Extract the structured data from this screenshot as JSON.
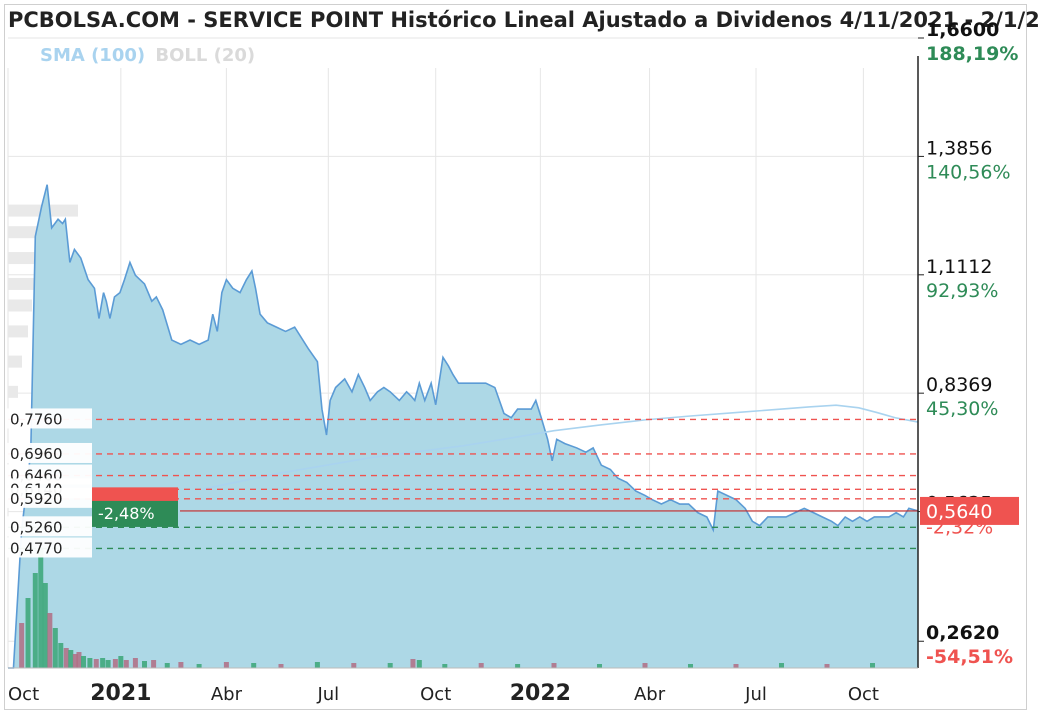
{
  "title": "PCBOLSA.COM - SERVICE POINT Histórico Lineal Ajustado a Dividenos 4/11/2021 - 2/1/2",
  "legend": {
    "sma_label": "SMA (100)",
    "boll_label": "BOLL (20)"
  },
  "colors": {
    "area_fill": "#add8e6",
    "line": "#5b9bd5",
    "sma": "#a9d3ef",
    "red": "#ef5350",
    "green": "#2e8b57",
    "grid": "#e6e6e6"
  },
  "chart_data": {
    "type": "area",
    "x_tick_labels": [
      "Oct",
      "2021",
      "Abr",
      "Jul",
      "Oct",
      "2022",
      "Abr",
      "Jul",
      "Oct"
    ],
    "y_ticks": [
      {
        "price": "1,6600",
        "pct": "188,19%",
        "bold": true
      },
      {
        "price": "1,3856",
        "pct": "140,56%",
        "bold": false
      },
      {
        "price": "1,1112",
        "pct": "92,93%",
        "bold": false
      },
      {
        "price": "0,8369",
        "pct": "45,30%",
        "bold": false
      },
      {
        "price": "0,5625",
        "pct": "-2,32%",
        "bold": false
      },
      {
        "price": "0,2620",
        "pct": "-54,51%",
        "bold": true
      }
    ],
    "ylim": [
      0.2,
      1.66
    ],
    "current_price": {
      "label": "0,5640",
      "value": 0.564
    },
    "pct_badge": {
      "label": "-2,48%"
    },
    "red_levels": [
      {
        "label": "0,7760",
        "value": 0.776
      },
      {
        "label": "0,6960",
        "value": 0.696
      },
      {
        "label": "0,6460",
        "value": 0.646
      },
      {
        "label": "0,6140",
        "value": 0.614
      },
      {
        "label": "0,5920",
        "value": 0.592
      }
    ],
    "green_levels": [
      {
        "label": "0,5260",
        "value": 0.526
      },
      {
        "label": "0,4770",
        "value": 0.477
      }
    ],
    "price_series": [
      [
        0.0,
        0.2
      ],
      [
        0.006,
        0.2
      ],
      [
        0.015,
        0.52
      ],
      [
        0.025,
        0.7
      ],
      [
        0.03,
        1.2
      ],
      [
        0.037,
        1.27
      ],
      [
        0.043,
        1.32
      ],
      [
        0.048,
        1.22
      ],
      [
        0.055,
        1.24
      ],
      [
        0.06,
        1.23
      ],
      [
        0.063,
        1.24
      ],
      [
        0.068,
        1.14
      ],
      [
        0.073,
        1.17
      ],
      [
        0.08,
        1.15
      ],
      [
        0.088,
        1.1
      ],
      [
        0.095,
        1.08
      ],
      [
        0.1,
        1.01
      ],
      [
        0.105,
        1.07
      ],
      [
        0.108,
        1.05
      ],
      [
        0.112,
        1.01
      ],
      [
        0.117,
        1.06
      ],
      [
        0.123,
        1.07
      ],
      [
        0.128,
        1.1
      ],
      [
        0.134,
        1.14
      ],
      [
        0.14,
        1.11
      ],
      [
        0.15,
        1.09
      ],
      [
        0.158,
        1.05
      ],
      [
        0.163,
        1.06
      ],
      [
        0.17,
        1.03
      ],
      [
        0.18,
        0.96
      ],
      [
        0.19,
        0.95
      ],
      [
        0.2,
        0.96
      ],
      [
        0.21,
        0.95
      ],
      [
        0.22,
        0.96
      ],
      [
        0.225,
        1.02
      ],
      [
        0.23,
        0.98
      ],
      [
        0.235,
        1.07
      ],
      [
        0.24,
        1.1
      ],
      [
        0.247,
        1.08
      ],
      [
        0.255,
        1.07
      ],
      [
        0.262,
        1.1
      ],
      [
        0.268,
        1.12
      ],
      [
        0.272,
        1.08
      ],
      [
        0.277,
        1.02
      ],
      [
        0.285,
        1.0
      ],
      [
        0.295,
        0.99
      ],
      [
        0.305,
        0.98
      ],
      [
        0.315,
        0.99
      ],
      [
        0.33,
        0.94
      ],
      [
        0.34,
        0.91
      ],
      [
        0.345,
        0.8
      ],
      [
        0.35,
        0.74
      ],
      [
        0.354,
        0.82
      ],
      [
        0.36,
        0.85
      ],
      [
        0.37,
        0.87
      ],
      [
        0.378,
        0.84
      ],
      [
        0.385,
        0.88
      ],
      [
        0.392,
        0.85
      ],
      [
        0.398,
        0.82
      ],
      [
        0.406,
        0.84
      ],
      [
        0.413,
        0.85
      ],
      [
        0.42,
        0.84
      ],
      [
        0.43,
        0.82
      ],
      [
        0.438,
        0.84
      ],
      [
        0.443,
        0.83
      ],
      [
        0.447,
        0.82
      ],
      [
        0.452,
        0.86
      ],
      [
        0.458,
        0.82
      ],
      [
        0.465,
        0.86
      ],
      [
        0.47,
        0.81
      ],
      [
        0.478,
        0.92
      ],
      [
        0.484,
        0.9
      ],
      [
        0.489,
        0.88
      ],
      [
        0.495,
        0.86
      ],
      [
        0.505,
        0.86
      ],
      [
        0.515,
        0.86
      ],
      [
        0.525,
        0.86
      ],
      [
        0.535,
        0.85
      ],
      [
        0.545,
        0.79
      ],
      [
        0.553,
        0.78
      ],
      [
        0.56,
        0.8
      ],
      [
        0.566,
        0.8
      ],
      [
        0.575,
        0.8
      ],
      [
        0.58,
        0.82
      ],
      [
        0.586,
        0.78
      ],
      [
        0.593,
        0.73
      ],
      [
        0.598,
        0.68
      ],
      [
        0.603,
        0.73
      ],
      [
        0.612,
        0.72
      ],
      [
        0.625,
        0.71
      ],
      [
        0.635,
        0.7
      ],
      [
        0.643,
        0.71
      ],
      [
        0.652,
        0.67
      ],
      [
        0.662,
        0.66
      ],
      [
        0.67,
        0.64
      ],
      [
        0.68,
        0.63
      ],
      [
        0.69,
        0.61
      ],
      [
        0.7,
        0.6
      ],
      [
        0.708,
        0.59
      ],
      [
        0.718,
        0.58
      ],
      [
        0.728,
        0.59
      ],
      [
        0.738,
        0.58
      ],
      [
        0.748,
        0.58
      ],
      [
        0.758,
        0.56
      ],
      [
        0.768,
        0.55
      ],
      [
        0.775,
        0.52
      ],
      [
        0.78,
        0.61
      ],
      [
        0.79,
        0.6
      ],
      [
        0.8,
        0.59
      ],
      [
        0.81,
        0.57
      ],
      [
        0.818,
        0.54
      ],
      [
        0.826,
        0.53
      ],
      [
        0.835,
        0.55
      ],
      [
        0.845,
        0.55
      ],
      [
        0.855,
        0.55
      ],
      [
        0.865,
        0.56
      ],
      [
        0.875,
        0.57
      ],
      [
        0.885,
        0.56
      ],
      [
        0.895,
        0.55
      ],
      [
        0.905,
        0.54
      ],
      [
        0.912,
        0.53
      ],
      [
        0.92,
        0.55
      ],
      [
        0.928,
        0.54
      ],
      [
        0.936,
        0.55
      ],
      [
        0.944,
        0.54
      ],
      [
        0.952,
        0.55
      ],
      [
        0.96,
        0.55
      ],
      [
        0.968,
        0.55
      ],
      [
        0.976,
        0.56
      ],
      [
        0.984,
        0.55
      ],
      [
        0.99,
        0.57
      ],
      [
        1.0,
        0.564
      ]
    ],
    "sma_series": [
      [
        0.215,
        0.615
      ],
      [
        0.3,
        0.652
      ],
      [
        0.4,
        0.688
      ],
      [
        0.5,
        0.715
      ],
      [
        0.55,
        0.732
      ],
      [
        0.6,
        0.75
      ],
      [
        0.65,
        0.763
      ],
      [
        0.7,
        0.775
      ],
      [
        0.75,
        0.784
      ],
      [
        0.8,
        0.792
      ],
      [
        0.85,
        0.8
      ],
      [
        0.88,
        0.805
      ],
      [
        0.91,
        0.809
      ],
      [
        0.935,
        0.803
      ],
      [
        0.955,
        0.792
      ],
      [
        0.975,
        0.78
      ],
      [
        1.0,
        0.77
      ]
    ],
    "volume_bars": [
      [
        0.015,
        45,
        "red"
      ],
      [
        0.022,
        70,
        "green"
      ],
      [
        0.03,
        95,
        "green"
      ],
      [
        0.036,
        120,
        "green"
      ],
      [
        0.041,
        85,
        "green"
      ],
      [
        0.046,
        55,
        "red"
      ],
      [
        0.052,
        40,
        "green"
      ],
      [
        0.058,
        25,
        "green"
      ],
      [
        0.064,
        20,
        "red"
      ],
      [
        0.069,
        18,
        "green"
      ],
      [
        0.074,
        14,
        "red"
      ],
      [
        0.078,
        16,
        "red"
      ],
      [
        0.083,
        12,
        "green"
      ],
      [
        0.09,
        10,
        "green"
      ],
      [
        0.097,
        9,
        "red"
      ],
      [
        0.104,
        10,
        "green"
      ],
      [
        0.11,
        8,
        "green"
      ],
      [
        0.118,
        9,
        "red"
      ],
      [
        0.124,
        12,
        "green"
      ],
      [
        0.13,
        8,
        "red"
      ],
      [
        0.14,
        10,
        "red"
      ],
      [
        0.15,
        7,
        "green"
      ],
      [
        0.16,
        8,
        "red"
      ],
      [
        0.175,
        5,
        "green"
      ],
      [
        0.19,
        6,
        "red"
      ],
      [
        0.21,
        4,
        "green"
      ],
      [
        0.24,
        6,
        "red"
      ],
      [
        0.27,
        5,
        "green"
      ],
      [
        0.3,
        4,
        "red"
      ],
      [
        0.34,
        6,
        "green"
      ],
      [
        0.38,
        5,
        "red"
      ],
      [
        0.42,
        5,
        "green"
      ],
      [
        0.445,
        9,
        "red"
      ],
      [
        0.452,
        8,
        "green"
      ],
      [
        0.48,
        4,
        "green"
      ],
      [
        0.52,
        5,
        "red"
      ],
      [
        0.56,
        4,
        "green"
      ],
      [
        0.6,
        5,
        "red"
      ],
      [
        0.65,
        4,
        "green"
      ],
      [
        0.7,
        5,
        "red"
      ],
      [
        0.75,
        4,
        "green"
      ],
      [
        0.8,
        4,
        "red"
      ],
      [
        0.85,
        5,
        "green"
      ],
      [
        0.9,
        4,
        "red"
      ],
      [
        0.95,
        5,
        "green"
      ]
    ],
    "left_profile": [
      [
        1.26,
        70
      ],
      [
        1.21,
        55
      ],
      [
        1.15,
        40
      ],
      [
        1.09,
        28
      ],
      [
        1.04,
        24
      ],
      [
        0.98,
        20
      ],
      [
        0.91,
        14
      ],
      [
        0.84,
        10
      ]
    ]
  }
}
